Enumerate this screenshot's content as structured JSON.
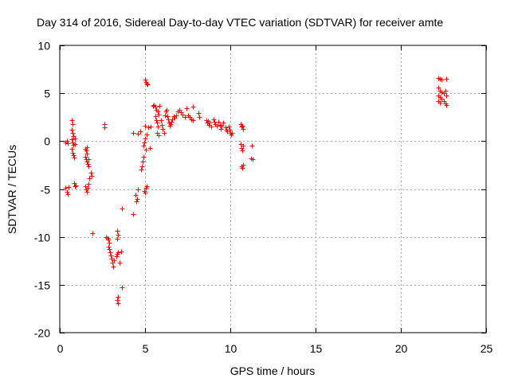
{
  "chart_data": {
    "type": "scatter",
    "title": "Day 314 of 2016, Sidereal Day-to-day VTEC variation (SDTVAR) for receiver amte",
    "xlabel": "GPS time / hours",
    "ylabel": "SDTVAR / TECUs",
    "xlim": [
      0,
      25
    ],
    "ylim": [
      -20,
      10
    ],
    "xticks": [
      0,
      5,
      10,
      15,
      20,
      25
    ],
    "yticks": [
      -20,
      -15,
      -10,
      -5,
      0,
      5,
      10
    ],
    "xtick_labels": [
      "0",
      "5",
      "10",
      "15",
      "20",
      "25"
    ],
    "ytick_labels": [
      "-20",
      "-15",
      "-10",
      "-5",
      "0",
      "5",
      "10"
    ],
    "grid": true,
    "marker": "+",
    "color": "#ff0000",
    "series": [
      {
        "name": "SDTVAR",
        "points": [
          [
            0.35,
            -0.1
          ],
          [
            0.4,
            0.0
          ],
          [
            0.45,
            -0.2
          ],
          [
            0.35,
            -4.9
          ],
          [
            0.4,
            -5.3
          ],
          [
            0.45,
            -5.5
          ],
          [
            0.5,
            -4.8
          ],
          [
            0.7,
            2.2
          ],
          [
            0.75,
            1.8
          ],
          [
            0.7,
            1.2
          ],
          [
            0.75,
            0.9
          ],
          [
            0.8,
            0.5
          ],
          [
            0.7,
            0.2
          ],
          [
            0.75,
            -0.1
          ],
          [
            0.8,
            -0.4
          ],
          [
            0.7,
            -0.8
          ],
          [
            0.75,
            -1.2
          ],
          [
            0.8,
            -1.5
          ],
          [
            0.85,
            -1.7
          ],
          [
            0.9,
            -0.3
          ],
          [
            0.9,
            0.3
          ],
          [
            0.85,
            -4.4
          ],
          [
            0.9,
            -4.7
          ],
          [
            0.95,
            -4.6
          ],
          [
            1.5,
            -0.8
          ],
          [
            1.55,
            -1.0
          ],
          [
            1.6,
            -1.3
          ],
          [
            1.5,
            -1.6
          ],
          [
            1.55,
            -1.9
          ],
          [
            1.6,
            -2.1
          ],
          [
            1.65,
            -2.4
          ],
          [
            1.7,
            -2.6
          ],
          [
            1.5,
            -4.7
          ],
          [
            1.55,
            -5.0
          ],
          [
            1.6,
            -5.3
          ],
          [
            1.65,
            -4.9
          ],
          [
            1.7,
            -4.5
          ],
          [
            1.75,
            -3.9
          ],
          [
            1.8,
            -3.3
          ],
          [
            1.6,
            -0.6
          ],
          [
            1.7,
            -1.9
          ],
          [
            1.85,
            -3.6
          ],
          [
            1.9,
            -9.6
          ],
          [
            2.6,
            1.4
          ],
          [
            2.6,
            1.8
          ],
          [
            2.7,
            -10.0
          ],
          [
            2.8,
            -10.1
          ],
          [
            2.85,
            -10.3
          ],
          [
            2.9,
            -10.6
          ],
          [
            2.85,
            -11.0
          ],
          [
            2.9,
            -11.3
          ],
          [
            2.95,
            -11.6
          ],
          [
            3.0,
            -11.9
          ],
          [
            3.05,
            -12.3
          ],
          [
            3.1,
            -12.7
          ],
          [
            3.15,
            -13.1
          ],
          [
            3.2,
            -12.4
          ],
          [
            3.3,
            -12.0
          ],
          [
            3.35,
            -11.8
          ],
          [
            3.4,
            -11.6
          ],
          [
            3.35,
            -9.4
          ],
          [
            3.4,
            -9.8
          ],
          [
            3.35,
            -10.2
          ],
          [
            3.4,
            -16.3
          ],
          [
            3.35,
            -16.6
          ],
          [
            3.4,
            -16.9
          ],
          [
            3.5,
            -12.7
          ],
          [
            3.6,
            -11.5
          ],
          [
            3.65,
            -15.3
          ],
          [
            3.65,
            -7.0
          ],
          [
            4.3,
            -7.6
          ],
          [
            4.3,
            0.9
          ],
          [
            4.45,
            -5.6
          ],
          [
            4.5,
            -6.3
          ],
          [
            4.55,
            -6.0
          ],
          [
            4.6,
            -5.0
          ],
          [
            4.6,
            0.8
          ],
          [
            4.7,
            1.0
          ],
          [
            4.75,
            -3.0
          ],
          [
            4.8,
            -2.6
          ],
          [
            4.85,
            -2.1
          ],
          [
            4.9,
            -1.6
          ],
          [
            4.9,
            -0.5
          ],
          [
            4.95,
            -0.1
          ],
          [
            5.0,
            0.3
          ],
          [
            4.95,
            -5.2
          ],
          [
            5.0,
            -5.4
          ],
          [
            5.05,
            -4.9
          ],
          [
            5.1,
            -4.7
          ],
          [
            5.05,
            -0.9
          ],
          [
            5.1,
            0.7
          ],
          [
            5.0,
            1.6
          ],
          [
            5.0,
            6.4
          ],
          [
            5.05,
            6.2
          ],
          [
            5.1,
            6.0
          ],
          [
            5.15,
            5.9
          ],
          [
            5.2,
            1.4
          ],
          [
            5.3,
            -0.7
          ],
          [
            5.35,
            1.5
          ],
          [
            5.45,
            3.7
          ],
          [
            5.5,
            3.8
          ],
          [
            5.6,
            3.6
          ],
          [
            5.65,
            3.3
          ],
          [
            5.6,
            2.6
          ],
          [
            5.65,
            2.2
          ],
          [
            5.7,
            1.9
          ],
          [
            5.75,
            1.5
          ],
          [
            5.7,
            0.9
          ],
          [
            5.8,
            0.6
          ],
          [
            5.75,
            3.1
          ],
          [
            5.8,
            2.8
          ],
          [
            5.85,
            3.7
          ],
          [
            5.95,
            2.2
          ],
          [
            6.0,
            1.7
          ],
          [
            6.05,
            1.3
          ],
          [
            6.1,
            0.9
          ],
          [
            6.15,
            2.7
          ],
          [
            6.2,
            3.1
          ],
          [
            6.25,
            3.3
          ],
          [
            6.3,
            2.6
          ],
          [
            6.35,
            2.3
          ],
          [
            6.4,
            1.9
          ],
          [
            6.45,
            1.6
          ],
          [
            6.5,
            1.8
          ],
          [
            6.55,
            2.0
          ],
          [
            6.6,
            2.3
          ],
          [
            6.7,
            2.6
          ],
          [
            6.75,
            2.4
          ],
          [
            6.8,
            2.7
          ],
          [
            6.9,
            3.1
          ],
          [
            7.0,
            3.3
          ],
          [
            7.1,
            3.0
          ],
          [
            7.2,
            2.8
          ],
          [
            7.35,
            2.5
          ],
          [
            7.45,
            3.4
          ],
          [
            7.5,
            2.7
          ],
          [
            7.6,
            2.5
          ],
          [
            7.7,
            2.3
          ],
          [
            7.8,
            2.2
          ],
          [
            7.8,
            3.6
          ],
          [
            8.15,
            2.9
          ],
          [
            8.2,
            2.5
          ],
          [
            8.6,
            2.2
          ],
          [
            8.65,
            1.9
          ],
          [
            8.7,
            2.1
          ],
          [
            8.75,
            1.7
          ],
          [
            8.8,
            1.9
          ],
          [
            8.9,
            1.5
          ],
          [
            9.0,
            2.3
          ],
          [
            9.05,
            2.0
          ],
          [
            9.1,
            1.8
          ],
          [
            9.2,
            1.6
          ],
          [
            9.3,
            2.0
          ],
          [
            9.4,
            1.7
          ],
          [
            9.45,
            1.3
          ],
          [
            9.5,
            1.6
          ],
          [
            9.6,
            1.9
          ],
          [
            9.7,
            1.4
          ],
          [
            9.75,
            1.2
          ],
          [
            9.8,
            1.0
          ],
          [
            9.9,
            1.5
          ],
          [
            9.95,
            1.2
          ],
          [
            10.0,
            0.9
          ],
          [
            10.05,
            0.7
          ],
          [
            10.1,
            0.9
          ],
          [
            10.6,
            1.8
          ],
          [
            10.65,
            1.5
          ],
          [
            10.7,
            1.6
          ],
          [
            10.75,
            1.3
          ],
          [
            10.6,
            -0.3
          ],
          [
            10.65,
            -0.7
          ],
          [
            10.7,
            -1.0
          ],
          [
            10.75,
            -0.5
          ],
          [
            10.65,
            -2.6
          ],
          [
            10.7,
            -2.8
          ],
          [
            10.75,
            -2.5
          ],
          [
            11.25,
            -0.5
          ],
          [
            11.2,
            -1.8
          ],
          [
            11.3,
            -1.9
          ],
          [
            22.2,
            6.6
          ],
          [
            22.3,
            6.5
          ],
          [
            22.4,
            6.4
          ],
          [
            22.65,
            6.5
          ],
          [
            22.2,
            5.6
          ],
          [
            22.3,
            5.3
          ],
          [
            22.4,
            5.1
          ],
          [
            22.5,
            5.0
          ],
          [
            22.2,
            4.8
          ],
          [
            22.3,
            4.6
          ],
          [
            22.4,
            4.4
          ],
          [
            22.2,
            4.2
          ],
          [
            22.3,
            4.0
          ],
          [
            22.5,
            4.2
          ],
          [
            22.6,
            3.9
          ],
          [
            22.65,
            3.8
          ],
          [
            22.6,
            5.3
          ],
          [
            22.65,
            4.8
          ]
        ]
      }
    ]
  }
}
